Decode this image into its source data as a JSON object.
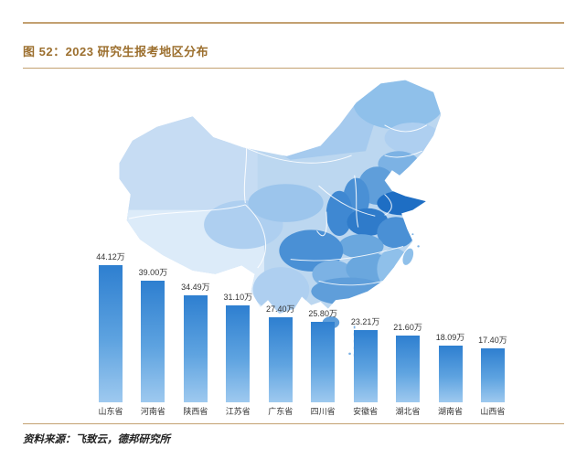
{
  "header": {
    "title": "图 52：2023 研究生报考地区分布"
  },
  "footer": {
    "source": "资料来源：飞致云，德邦研究所"
  },
  "colors": {
    "rule_gold": "#c3a171",
    "title_text": "#9c6f2e",
    "bar_gradient_top": "#2e7fd0",
    "bar_gradient_bottom": "#9ec9ef",
    "map_lightest": "#dcebf9",
    "map_darkest": "#1e6ec4"
  },
  "chart_data": {
    "type": "bar",
    "title": "2023 研究生报考地区分布",
    "categories": [
      "山东省",
      "河南省",
      "陕西省",
      "江苏省",
      "广东省",
      "四川省",
      "安徽省",
      "湖北省",
      "湖南省",
      "山西省"
    ],
    "values": [
      44.12,
      39.0,
      34.49,
      31.1,
      27.4,
      25.8,
      23.21,
      21.6,
      18.09,
      17.4
    ],
    "value_labels": [
      "44.12万",
      "39.00万",
      "34.49万",
      "31.10万",
      "27.40万",
      "25.80万",
      "23.21万",
      "21.60万",
      "18.09万",
      "17.40万"
    ],
    "unit": "万",
    "ylim": [
      0,
      45
    ],
    "legend": "none",
    "grid": "off",
    "companion_map": {
      "type": "choropleth",
      "region": "China",
      "shading": "blue, darker = higher value"
    }
  }
}
